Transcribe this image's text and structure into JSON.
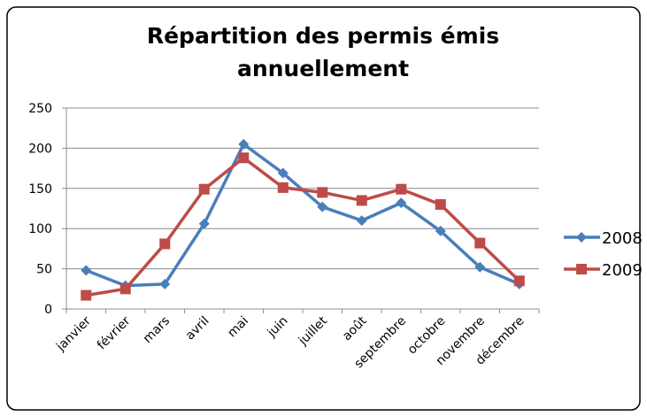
{
  "chart_data": {
    "type": "line",
    "title": "Répartition des permis émis annuellement",
    "categories": [
      "janvier",
      "février",
      "mars",
      "avril",
      "mai",
      "juin",
      "juillet",
      "août",
      "septembre",
      "octobre",
      "novembre",
      "décembre"
    ],
    "series": [
      {
        "name": "2008",
        "color": "#4a7ebb",
        "marker": "diamond",
        "values": [
          48,
          29,
          31,
          106,
          205,
          169,
          127,
          110,
          132,
          97,
          52,
          31
        ]
      },
      {
        "name": "2009",
        "color": "#be4b48",
        "marker": "square",
        "values": [
          17,
          25,
          81,
          149,
          188,
          151,
          145,
          135,
          149,
          130,
          82,
          35
        ]
      }
    ],
    "ylim": [
      0,
      250
    ],
    "yticks": [
      0,
      50,
      100,
      150,
      200,
      250
    ],
    "grid": true,
    "legend": "right"
  }
}
